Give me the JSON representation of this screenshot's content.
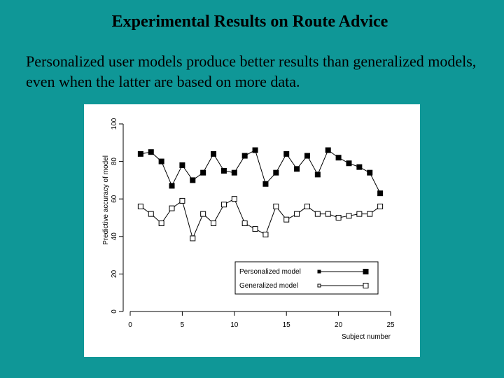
{
  "slide": {
    "title": "Experimental Results on Route Advice",
    "subtitle": "Personalized user models produce better results than generalized models, even when the latter are based on more data."
  },
  "colors": {
    "background": "#0f9797",
    "panel": "#ffffff",
    "ink": "#000000"
  },
  "chart_data": {
    "type": "line",
    "title": "",
    "xlabel": "Subject number",
    "ylabel": "Predictive accuracy of model",
    "xlim": [
      0,
      25
    ],
    "ylim": [
      0,
      100
    ],
    "xticks": [
      0,
      5,
      10,
      15,
      20,
      25
    ],
    "yticks": [
      0,
      20,
      40,
      60,
      80,
      100
    ],
    "grid": false,
    "legend_position": "lower-right",
    "x": [
      1,
      2,
      3,
      4,
      5,
      6,
      7,
      8,
      9,
      10,
      11,
      12,
      13,
      14,
      15,
      16,
      17,
      18,
      19,
      20,
      21,
      22,
      23,
      24
    ],
    "series": [
      {
        "name": "Personalized model",
        "marker": "filled-square",
        "values": [
          84,
          85,
          80,
          67,
          78,
          70,
          74,
          84,
          75,
          74,
          83,
          86,
          68,
          74,
          84,
          76,
          83,
          73,
          86,
          82,
          79,
          77,
          74,
          63
        ]
      },
      {
        "name": "Generalized model",
        "marker": "open-square",
        "values": [
          56,
          52,
          47,
          55,
          59,
          39,
          52,
          47,
          57,
          60,
          47,
          44,
          41,
          56,
          49,
          52,
          56,
          52,
          52,
          50,
          51,
          52,
          52,
          56
        ]
      }
    ]
  }
}
